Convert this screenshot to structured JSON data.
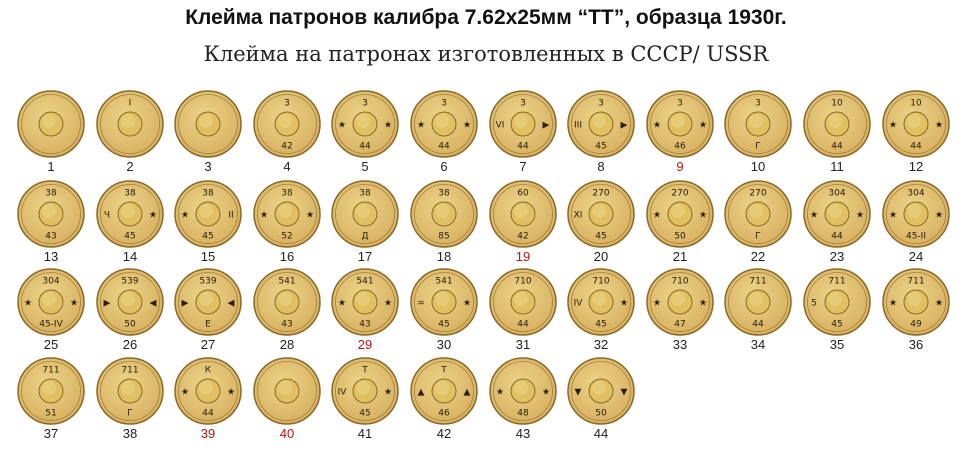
{
  "title": "Клейма патронов калибра 7.62x25мм “ТТ”, образца 1930г.",
  "subtitle": "Клейма на патронах изготовленных в СССР/ USSR",
  "colors": {
    "brass": "#d8b060",
    "brass_light": "#ecd58a",
    "rim": "#8a6a2a",
    "primer": "#e0c060",
    "highlight_red": "#b01818"
  },
  "stamps": [
    {
      "number": "1",
      "top": "",
      "bottom": "",
      "left": "",
      "right": ""
    },
    {
      "number": "2",
      "top": "I",
      "bottom": "",
      "left": "",
      "right": ""
    },
    {
      "number": "3",
      "top": "",
      "bottom": "",
      "left": "",
      "right": ""
    },
    {
      "number": "4",
      "top": "3",
      "bottom": "42",
      "left": "",
      "right": ""
    },
    {
      "number": "5",
      "top": "3",
      "bottom": "44",
      "left": "★",
      "right": "★"
    },
    {
      "number": "6",
      "top": "3",
      "bottom": "44",
      "left": "★",
      "right": "★"
    },
    {
      "number": "7",
      "top": "3",
      "bottom": "44",
      "left": "VI",
      "right": "▶"
    },
    {
      "number": "8",
      "top": "3",
      "bottom": "45",
      "left": "III",
      "right": "▶"
    },
    {
      "number": "9",
      "top": "3",
      "bottom": "46",
      "left": "★",
      "right": "★"
    },
    {
      "number": "10",
      "top": "3",
      "bottom": "Г",
      "left": "",
      "right": ""
    },
    {
      "number": "11",
      "top": "10",
      "bottom": "44",
      "left": "",
      "right": ""
    },
    {
      "number": "12",
      "top": "10",
      "bottom": "44",
      "left": "★",
      "right": "★"
    },
    {
      "number": "13",
      "top": "38",
      "bottom": "43",
      "left": "",
      "right": ""
    },
    {
      "number": "14",
      "top": "38",
      "bottom": "45",
      "left": "Ч",
      "right": "★"
    },
    {
      "number": "15",
      "top": "38",
      "bottom": "45",
      "left": "★",
      "right": "II"
    },
    {
      "number": "16",
      "top": "38",
      "bottom": "52",
      "left": "★",
      "right": "★"
    },
    {
      "number": "17",
      "top": "38",
      "bottom": "Д",
      "left": "",
      "right": ""
    },
    {
      "number": "18",
      "top": "38",
      "bottom": "85",
      "left": "",
      "right": ""
    },
    {
      "number": "19",
      "top": "60",
      "bottom": "42",
      "left": "",
      "right": ""
    },
    {
      "number": "20",
      "top": "270",
      "bottom": "45",
      "left": "XI",
      "right": ""
    },
    {
      "number": "21",
      "top": "270",
      "bottom": "50",
      "left": "★",
      "right": "★"
    },
    {
      "number": "22",
      "top": "270",
      "bottom": "Г",
      "left": "",
      "right": ""
    },
    {
      "number": "23",
      "top": "304",
      "bottom": "44",
      "left": "★",
      "right": "★"
    },
    {
      "number": "24",
      "top": "304",
      "bottom": "45-II",
      "left": "★",
      "right": "★"
    },
    {
      "number": "25",
      "top": "304",
      "bottom": "45-IV",
      "left": "★",
      "right": "★"
    },
    {
      "number": "26",
      "top": "539",
      "bottom": "50",
      "left": "▶",
      "right": "◀"
    },
    {
      "number": "27",
      "top": "539",
      "bottom": "Е",
      "left": "▶",
      "right": "◀"
    },
    {
      "number": "28",
      "top": "541",
      "bottom": "43",
      "left": "",
      "right": ""
    },
    {
      "number": "29",
      "top": "541",
      "bottom": "43",
      "left": "★",
      "right": "★"
    },
    {
      "number": "30",
      "top": "541",
      "bottom": "45",
      "left": "=",
      "right": "★"
    },
    {
      "number": "31",
      "top": "710",
      "bottom": "44",
      "left": "",
      "right": ""
    },
    {
      "number": "32",
      "top": "710",
      "bottom": "45",
      "left": "IV",
      "right": "★"
    },
    {
      "number": "33",
      "top": "710",
      "bottom": "47",
      "left": "★",
      "right": "★"
    },
    {
      "number": "34",
      "top": "711",
      "bottom": "44",
      "left": "",
      "right": ""
    },
    {
      "number": "35",
      "top": "711",
      "bottom": "45",
      "left": "5",
      "right": ""
    },
    {
      "number": "36",
      "top": "711",
      "bottom": "49",
      "left": "★",
      "right": "★"
    },
    {
      "number": "37",
      "top": "711",
      "bottom": "51",
      "left": "",
      "right": ""
    },
    {
      "number": "38",
      "top": "711",
      "bottom": "Г",
      "left": "",
      "right": ""
    },
    {
      "number": "39",
      "top": "К",
      "bottom": "44",
      "left": "★",
      "right": "★"
    },
    {
      "number": "40",
      "top": "",
      "bottom": "",
      "left": "",
      "right": ""
    },
    {
      "number": "41",
      "top": "Т",
      "bottom": "45",
      "left": "IV",
      "right": "★"
    },
    {
      "number": "42",
      "top": "Т",
      "bottom": "46",
      "left": "▲",
      "right": "▲"
    },
    {
      "number": "43",
      "top": "",
      "bottom": "48",
      "left": "★",
      "right": "★"
    },
    {
      "number": "44",
      "top": "",
      "bottom": "50",
      "left": "▼",
      "right": "▼"
    }
  ],
  "red_numbers": [
    "9",
    "19",
    "29",
    "39",
    "40"
  ]
}
